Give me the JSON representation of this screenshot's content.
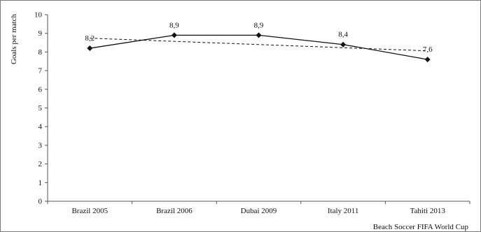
{
  "chart_data": {
    "type": "line",
    "categories": [
      "Brazil 2005",
      "Brazil 2006",
      "Dubai 2009",
      "Italy 2011",
      "Tahiti 2013"
    ],
    "series": [
      {
        "values": [
          8.2,
          8.9,
          8.9,
          8.4,
          7.6
        ],
        "data_labels": [
          "8,2",
          "8,9",
          "8,9",
          "8,4",
          "7,6"
        ],
        "color": "#111111",
        "marker": "diamond"
      }
    ],
    "trendline": {
      "style": "dashed",
      "type": "linear",
      "color": "#111111"
    },
    "xlabel": "Beach Soccer FIFA World Cup",
    "ylabel": "Goals per match",
    "ylim": [
      0,
      10
    ],
    "yticks": [
      0,
      1,
      2,
      3,
      4,
      5,
      6,
      7,
      8,
      9,
      10
    ],
    "grid": false,
    "legend": "none"
  }
}
